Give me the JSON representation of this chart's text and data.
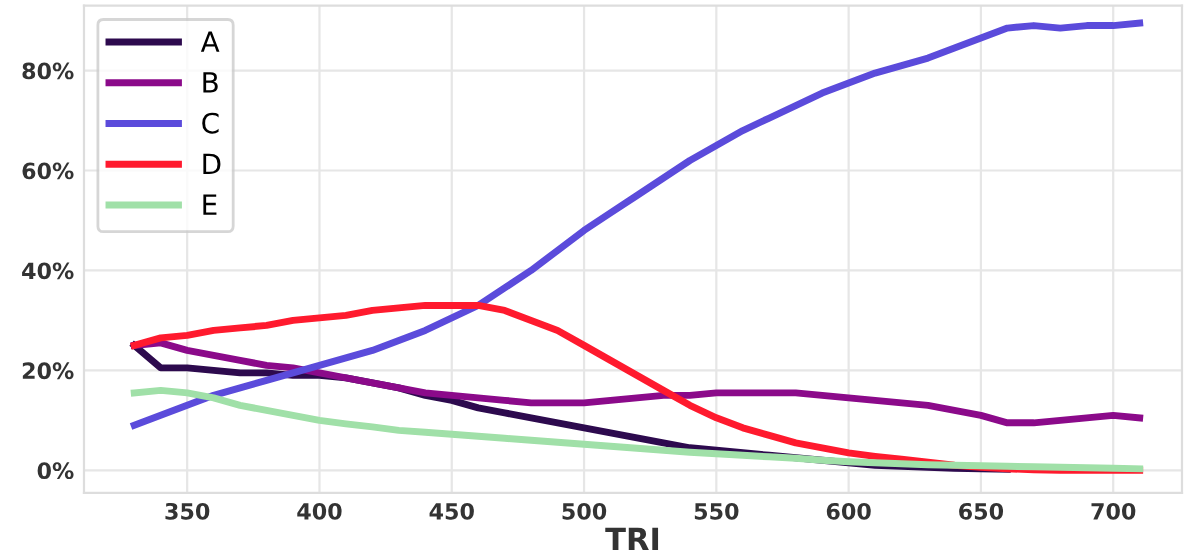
{
  "chart_data": {
    "type": "line",
    "xlabel": "TRI",
    "x": [
      330,
      340,
      350,
      360,
      370,
      380,
      390,
      400,
      410,
      420,
      430,
      440,
      450,
      460,
      470,
      480,
      490,
      500,
      510,
      520,
      530,
      540,
      550,
      560,
      570,
      580,
      590,
      600,
      610,
      620,
      630,
      640,
      650,
      660,
      670,
      680,
      690,
      700,
      710
    ],
    "series": [
      {
        "name": "A",
        "color": "#2d0a4e",
        "values": [
          25,
          20.5,
          20.5,
          20,
          19.5,
          19.5,
          19,
          19,
          18.5,
          17.5,
          16.5,
          15,
          14,
          12.5,
          11.5,
          10.5,
          9.5,
          8.5,
          7.5,
          6.5,
          5.5,
          4.5,
          4,
          3.5,
          3,
          2.5,
          2,
          1.5,
          1,
          0.8,
          0.6,
          0.4,
          0.3,
          0.2,
          null,
          null,
          null,
          null,
          null
        ]
      },
      {
        "name": "B",
        "color": "#8b0a8a",
        "values": [
          25,
          25.5,
          24,
          23,
          22,
          21,
          20.5,
          19.5,
          18.5,
          17.5,
          16.5,
          15.5,
          15,
          14.5,
          14,
          13.5,
          13.5,
          13.5,
          14,
          14.5,
          15,
          15,
          15.5,
          15.5,
          15.5,
          15.5,
          15,
          14.5,
          14,
          13.5,
          13,
          12,
          11,
          9.5,
          9.5,
          10,
          10.5,
          11,
          10.5
        ]
      },
      {
        "name": "C",
        "color": "#5b4bdb",
        "values": [
          9,
          11,
          13,
          15,
          16.5,
          18,
          19.5,
          21,
          22.5,
          24,
          26,
          28,
          30.5,
          33,
          36.5,
          40,
          44,
          48,
          51.5,
          55,
          58.5,
          62,
          65,
          68,
          70.5,
          73,
          75.5,
          77.5,
          79.5,
          81,
          82.5,
          84.5,
          86.5,
          88.5,
          89,
          88.5,
          89,
          89,
          89.5
        ]
      },
      {
        "name": "D",
        "color": "#ff1a2e",
        "values": [
          25,
          26.5,
          27,
          28,
          28.5,
          29,
          30,
          30.5,
          31,
          32,
          32.5,
          33,
          33,
          33,
          32,
          30,
          28,
          25,
          22,
          19,
          16,
          13,
          10.5,
          8.5,
          7,
          5.5,
          4.5,
          3.5,
          2.8,
          2.2,
          1.6,
          1,
          0.6,
          0.3,
          0.1,
          0,
          0,
          0,
          0
        ]
      },
      {
        "name": "E",
        "color": "#a0e0a8",
        "values": [
          15.5,
          16,
          15.5,
          14.5,
          13,
          12,
          11,
          10,
          9.3,
          8.7,
          8,
          7.6,
          7.2,
          6.8,
          6.4,
          6,
          5.6,
          5.2,
          4.8,
          4.4,
          4,
          3.6,
          3.3,
          3,
          2.7,
          2.4,
          2,
          1.7,
          1.5,
          1.3,
          1.1,
          1,
          0.9,
          0.8,
          0.7,
          0.6,
          0.5,
          0.4,
          0.3
        ]
      }
    ],
    "xlim": [
      311,
      726
    ],
    "xticks": [
      350,
      400,
      450,
      500,
      550,
      600,
      650,
      700
    ],
    "ylim": [
      -4.5,
      93
    ],
    "yticks": [
      {
        "value": 0,
        "label": "0%"
      },
      {
        "value": 20,
        "label": "20%"
      },
      {
        "value": 40,
        "label": "40%"
      },
      {
        "value": 60,
        "label": "60%"
      },
      {
        "value": 80,
        "label": "80%"
      }
    ],
    "grid": true,
    "legend": "top left",
    "marker": "none",
    "line_style": "solid"
  }
}
